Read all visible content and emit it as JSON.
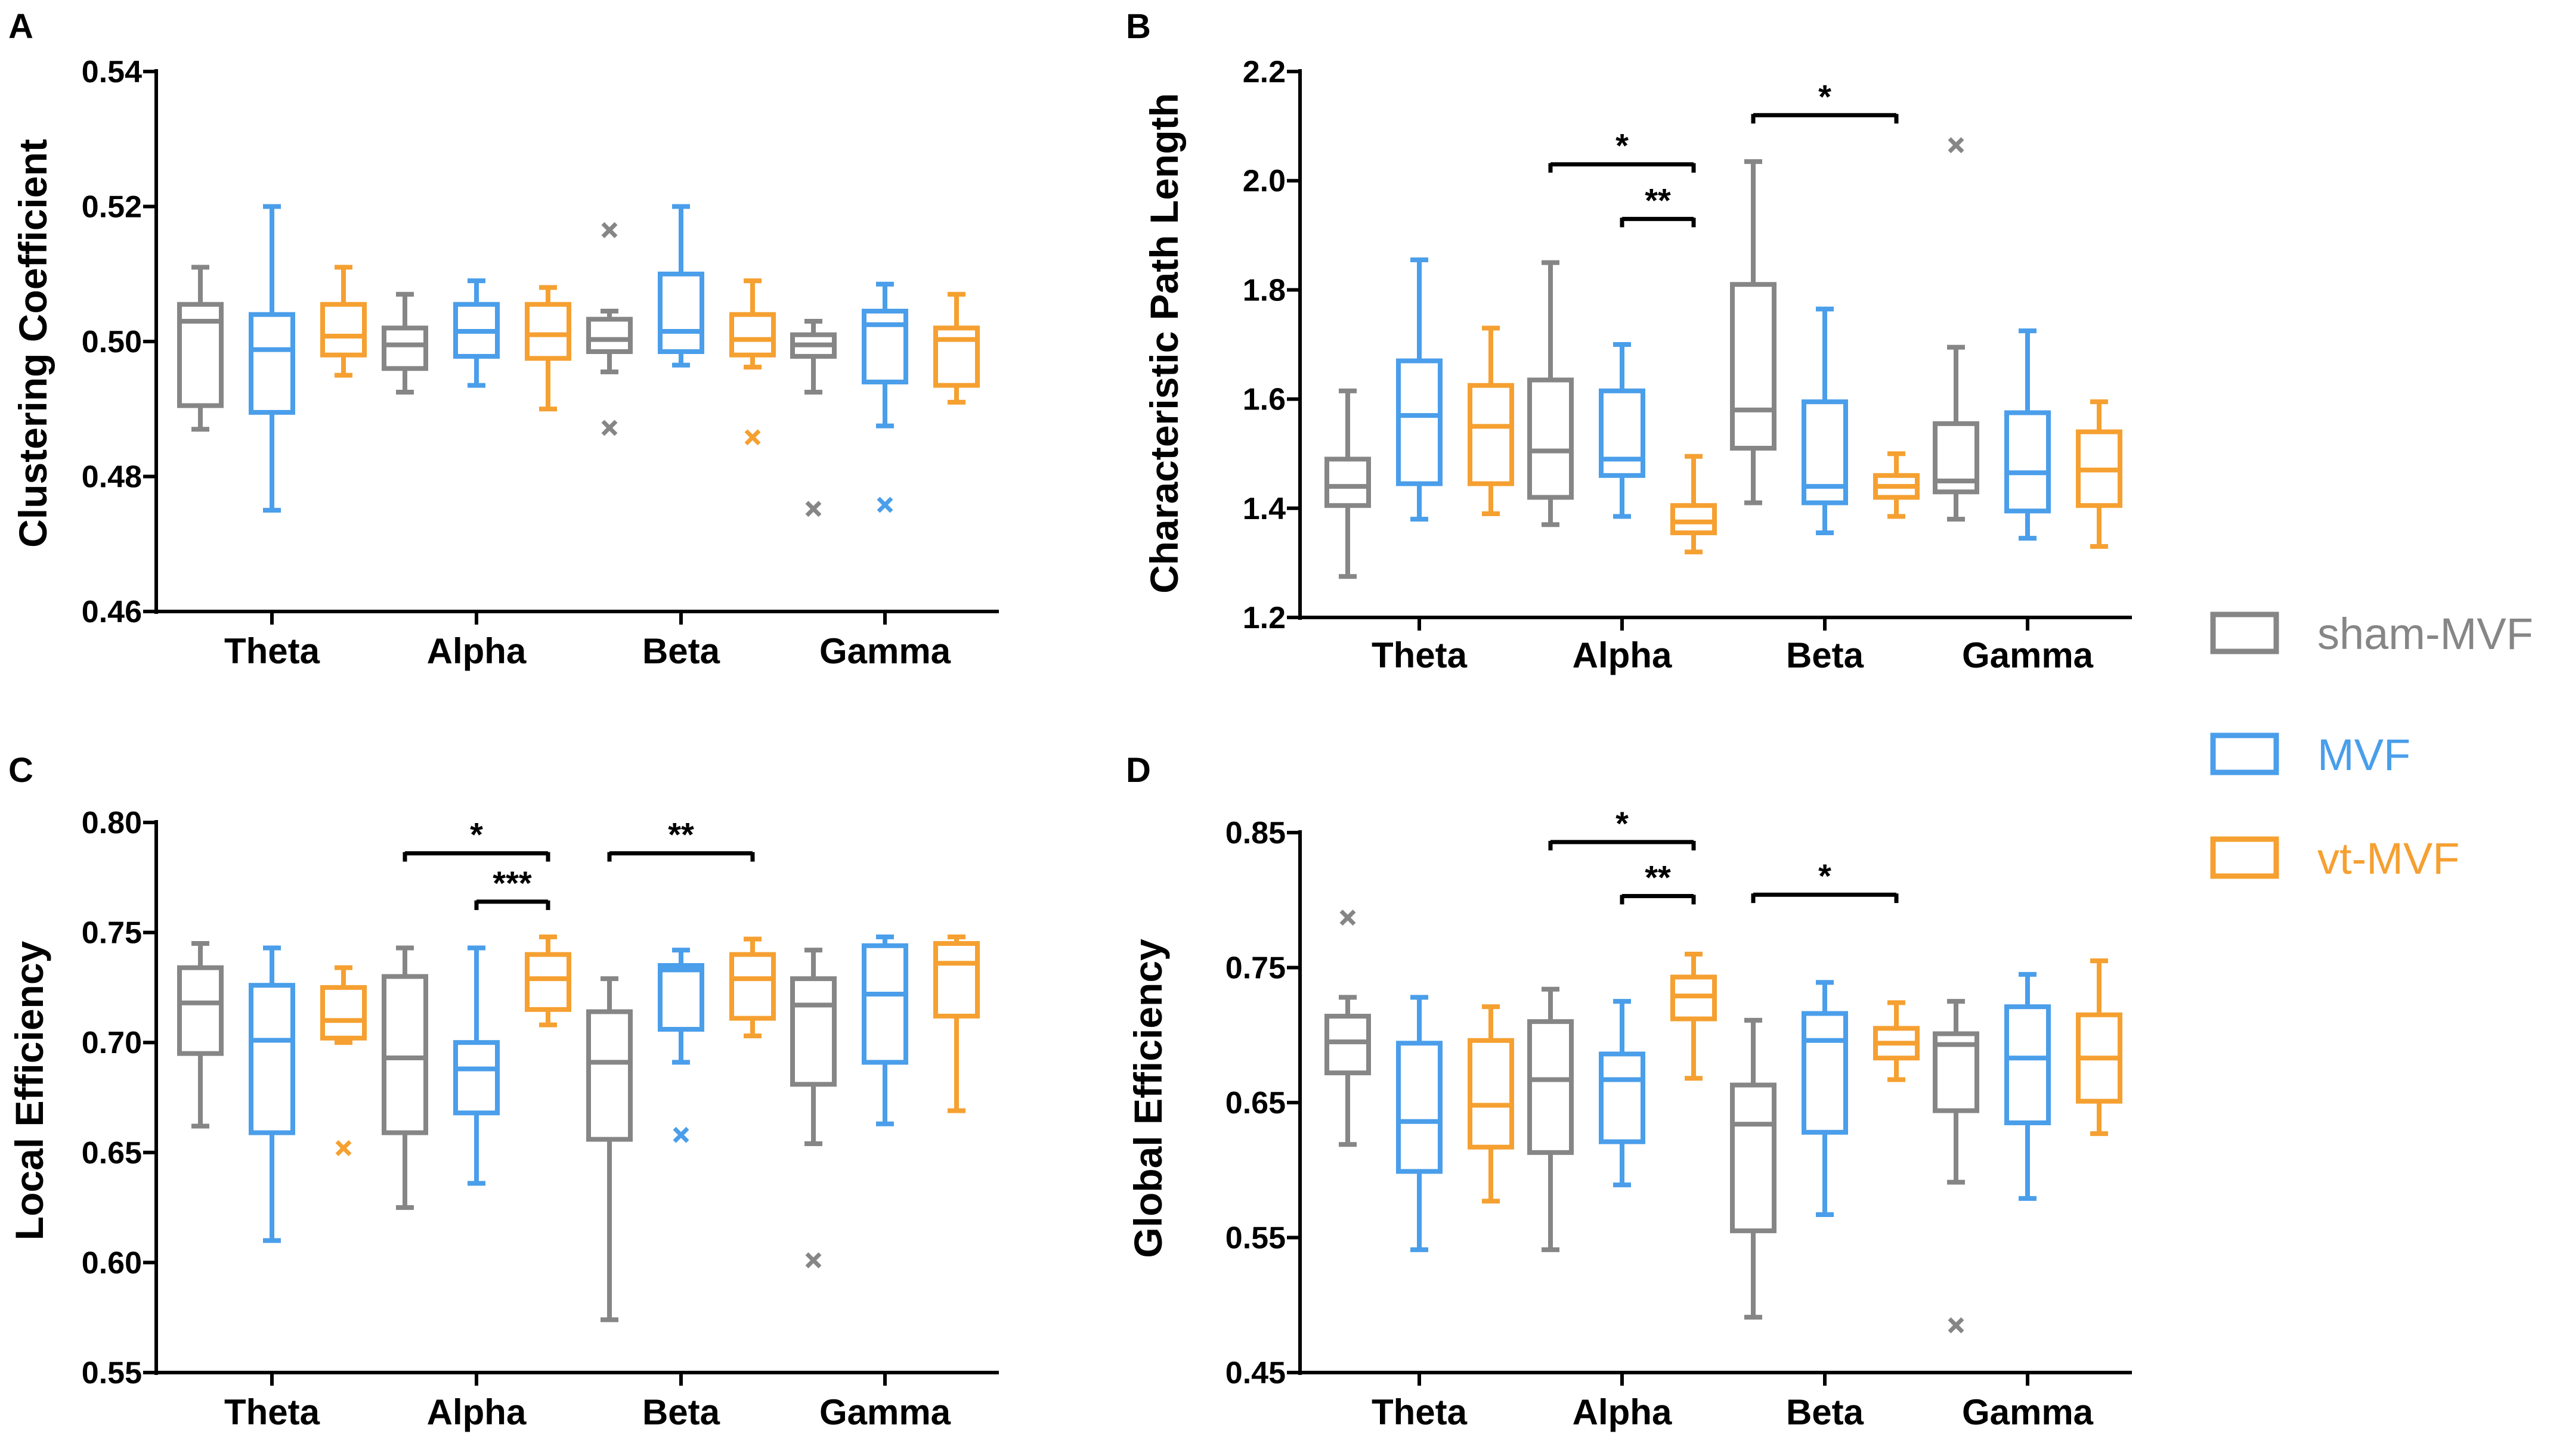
{
  "colors": {
    "sham-MVF": "#868686",
    "MVF": "#4a9eea",
    "vt-MVF": "#f5a031"
  },
  "legend": [
    {
      "name": "sham-MVF",
      "label": "sham-MVF"
    },
    {
      "name": "MVF",
      "label": "MVF"
    },
    {
      "name": "vt-MVF",
      "label": "vt-MVF"
    }
  ],
  "chart_data": [
    {
      "panel": "A",
      "type": "box",
      "ylabel": "Clustering Coefficient",
      "ylim": [
        0.46,
        0.54
      ],
      "ticks": [
        0.46,
        0.48,
        0.5,
        0.52,
        0.54
      ],
      "tick_labels": [
        "0.46",
        "0.48",
        "0.50",
        "0.52",
        "0.54"
      ],
      "categories": [
        "Theta",
        "Alpha",
        "Beta",
        "Gamma"
      ],
      "series": [
        {
          "name": "sham-MVF",
          "boxes": [
            {
              "min": 0.487,
              "q1": 0.4905,
              "median": 0.503,
              "q3": 0.5055,
              "max": 0.511,
              "outliers": []
            },
            {
              "min": 0.4925,
              "q1": 0.496,
              "median": 0.4995,
              "q3": 0.502,
              "max": 0.507,
              "outliers": []
            },
            {
              "min": 0.4955,
              "q1": 0.4985,
              "median": 0.5003,
              "q3": 0.5033,
              "max": 0.5045,
              "outliers": [
                0.5165,
                0.4872
              ]
            },
            {
              "min": 0.4925,
              "q1": 0.4978,
              "median": 0.4995,
              "q3": 0.501,
              "max": 0.503,
              "outliers": [
                0.4752
              ]
            }
          ]
        },
        {
          "name": "MVF",
          "boxes": [
            {
              "min": 0.475,
              "q1": 0.4895,
              "median": 0.4988,
              "q3": 0.504,
              "max": 0.52,
              "outliers": []
            },
            {
              "min": 0.4935,
              "q1": 0.4978,
              "median": 0.5015,
              "q3": 0.5055,
              "max": 0.509,
              "outliers": []
            },
            {
              "min": 0.4965,
              "q1": 0.4985,
              "median": 0.5015,
              "q3": 0.51,
              "max": 0.52,
              "outliers": []
            },
            {
              "min": 0.4875,
              "q1": 0.494,
              "median": 0.5025,
              "q3": 0.5045,
              "max": 0.5085,
              "outliers": [
                0.4758
              ]
            }
          ]
        },
        {
          "name": "vt-MVF",
          "boxes": [
            {
              "min": 0.495,
              "q1": 0.498,
              "median": 0.5008,
              "q3": 0.5055,
              "max": 0.511,
              "outliers": []
            },
            {
              "min": 0.49,
              "q1": 0.4975,
              "median": 0.501,
              "q3": 0.5055,
              "max": 0.508,
              "outliers": []
            },
            {
              "min": 0.4962,
              "q1": 0.498,
              "median": 0.5003,
              "q3": 0.504,
              "max": 0.509,
              "outliers": [
                0.4858
              ]
            },
            {
              "min": 0.491,
              "q1": 0.4935,
              "median": 0.5003,
              "q3": 0.502,
              "max": 0.507,
              "outliers": []
            }
          ]
        }
      ],
      "significance": []
    },
    {
      "panel": "B",
      "type": "box",
      "ylabel": "Characteristic Path Length",
      "ylim": [
        1.2,
        2.2
      ],
      "ticks": [
        1.2,
        1.4,
        1.6,
        1.8,
        2.0,
        2.2
      ],
      "tick_labels": [
        "1.2",
        "1.4",
        "1.6",
        "1.8",
        "2.0",
        "2.2"
      ],
      "categories": [
        "Theta",
        "Alpha",
        "Beta",
        "Gamma"
      ],
      "series": [
        {
          "name": "sham-MVF",
          "boxes": [
            {
              "min": 1.275,
              "q1": 1.405,
              "median": 1.44,
              "q3": 1.49,
              "max": 1.615,
              "outliers": []
            },
            {
              "min": 1.37,
              "q1": 1.42,
              "median": 1.505,
              "q3": 1.635,
              "max": 1.85,
              "outliers": []
            },
            {
              "min": 1.41,
              "q1": 1.51,
              "median": 1.58,
              "q3": 1.81,
              "max": 2.035,
              "outliers": []
            },
            {
              "min": 1.38,
              "q1": 1.43,
              "median": 1.45,
              "q3": 1.555,
              "max": 1.695,
              "outliers": [
                2.065
              ]
            }
          ]
        },
        {
          "name": "MVF",
          "boxes": [
            {
              "min": 1.38,
              "q1": 1.445,
              "median": 1.57,
              "q3": 1.67,
              "max": 1.855,
              "outliers": []
            },
            {
              "min": 1.385,
              "q1": 1.46,
              "median": 1.49,
              "q3": 1.615,
              "max": 1.7,
              "outliers": []
            },
            {
              "min": 1.355,
              "q1": 1.41,
              "median": 1.44,
              "q3": 1.595,
              "max": 1.765,
              "outliers": []
            },
            {
              "min": 1.345,
              "q1": 1.395,
              "median": 1.465,
              "q3": 1.575,
              "max": 1.725,
              "outliers": []
            }
          ]
        },
        {
          "name": "vt-MVF",
          "boxes": [
            {
              "min": 1.39,
              "q1": 1.445,
              "median": 1.55,
              "q3": 1.625,
              "max": 1.73,
              "outliers": []
            },
            {
              "min": 1.32,
              "q1": 1.355,
              "median": 1.375,
              "q3": 1.405,
              "max": 1.495,
              "outliers": []
            },
            {
              "min": 1.385,
              "q1": 1.42,
              "median": 1.44,
              "q3": 1.46,
              "max": 1.5,
              "outliers": []
            },
            {
              "min": 1.33,
              "q1": 1.405,
              "median": 1.47,
              "q3": 1.54,
              "max": 1.595,
              "outliers": []
            }
          ]
        }
      ],
      "significance": [
        {
          "category": 1,
          "from": "sham-MVF",
          "to": "vt-MVF",
          "level": 2.03,
          "label": "*"
        },
        {
          "category": 1,
          "from": "MVF",
          "to": "vt-MVF",
          "level": 1.93,
          "label": "**"
        },
        {
          "category": 2,
          "from": "sham-MVF",
          "to": "vt-MVF",
          "level": 2.12,
          "label": "*"
        }
      ]
    },
    {
      "panel": "C",
      "type": "box",
      "ylabel": "Local Efficiency",
      "ylim": [
        0.55,
        0.8
      ],
      "ticks": [
        0.55,
        0.6,
        0.65,
        0.7,
        0.75,
        0.8
      ],
      "tick_labels": [
        "0.55",
        "0.60",
        "0.65",
        "0.70",
        "0.75",
        "0.80"
      ],
      "categories": [
        "Theta",
        "Alpha",
        "Beta",
        "Gamma"
      ],
      "series": [
        {
          "name": "sham-MVF",
          "boxes": [
            {
              "min": 0.662,
              "q1": 0.695,
              "median": 0.718,
              "q3": 0.734,
              "max": 0.745,
              "outliers": []
            },
            {
              "min": 0.625,
              "q1": 0.659,
              "median": 0.693,
              "q3": 0.73,
              "max": 0.743,
              "outliers": []
            },
            {
              "min": 0.574,
              "q1": 0.656,
              "median": 0.691,
              "q3": 0.714,
              "max": 0.729,
              "outliers": []
            },
            {
              "min": 0.654,
              "q1": 0.681,
              "median": 0.717,
              "q3": 0.729,
              "max": 0.742,
              "outliers": [
                0.601
              ]
            }
          ]
        },
        {
          "name": "MVF",
          "boxes": [
            {
              "min": 0.61,
              "q1": 0.659,
              "median": 0.701,
              "q3": 0.726,
              "max": 0.743,
              "outliers": []
            },
            {
              "min": 0.636,
              "q1": 0.668,
              "median": 0.688,
              "q3": 0.7,
              "max": 0.743,
              "outliers": []
            },
            {
              "min": 0.691,
              "q1": 0.706,
              "median": 0.733,
              "q3": 0.735,
              "max": 0.742,
              "outliers": [
                0.658
              ]
            },
            {
              "min": 0.663,
              "q1": 0.691,
              "median": 0.722,
              "q3": 0.744,
              "max": 0.748,
              "outliers": []
            }
          ]
        },
        {
          "name": "vt-MVF",
          "boxes": [
            {
              "min": 0.7,
              "q1": 0.702,
              "median": 0.71,
              "q3": 0.725,
              "max": 0.734,
              "outliers": [
                0.652
              ]
            },
            {
              "min": 0.708,
              "q1": 0.715,
              "median": 0.729,
              "q3": 0.74,
              "max": 0.748,
              "outliers": []
            },
            {
              "min": 0.703,
              "q1": 0.711,
              "median": 0.729,
              "q3": 0.74,
              "max": 0.747,
              "outliers": []
            },
            {
              "min": 0.669,
              "q1": 0.712,
              "median": 0.736,
              "q3": 0.745,
              "max": 0.748,
              "outliers": []
            }
          ]
        }
      ],
      "significance": [
        {
          "category": 1,
          "from": "sham-MVF",
          "to": "vt-MVF",
          "level": 0.786,
          "label": "*"
        },
        {
          "category": 1,
          "from": "MVF",
          "to": "vt-MVF",
          "level": 0.764,
          "label": "***"
        },
        {
          "category": 2,
          "from": "sham-MVF",
          "to": "vt-MVF",
          "level": 0.786,
          "label": "**"
        }
      ]
    },
    {
      "panel": "D",
      "type": "box",
      "ylabel": "Global Efficiency",
      "ylim": [
        0.45,
        0.85
      ],
      "ticks": [
        0.45,
        0.55,
        0.65,
        0.75,
        0.85
      ],
      "tick_labels": [
        "0.45",
        "0.55",
        "0.65",
        "0.75",
        "0.85"
      ],
      "categories": [
        "Theta",
        "Alpha",
        "Beta",
        "Gamma"
      ],
      "series": [
        {
          "name": "sham-MVF",
          "boxes": [
            {
              "min": 0.619,
              "q1": 0.672,
              "median": 0.695,
              "q3": 0.714,
              "max": 0.728,
              "outliers": [
                0.787
              ]
            },
            {
              "min": 0.541,
              "q1": 0.613,
              "median": 0.667,
              "q3": 0.71,
              "max": 0.734,
              "outliers": []
            },
            {
              "min": 0.491,
              "q1": 0.555,
              "median": 0.634,
              "q3": 0.663,
              "max": 0.711,
              "outliers": []
            },
            {
              "min": 0.591,
              "q1": 0.644,
              "median": 0.693,
              "q3": 0.701,
              "max": 0.725,
              "outliers": [
                0.485
              ]
            }
          ]
        },
        {
          "name": "MVF",
          "boxes": [
            {
              "min": 0.541,
              "q1": 0.599,
              "median": 0.636,
              "q3": 0.694,
              "max": 0.728,
              "outliers": []
            },
            {
              "min": 0.589,
              "q1": 0.621,
              "median": 0.667,
              "q3": 0.686,
              "max": 0.725,
              "outliers": []
            },
            {
              "min": 0.567,
              "q1": 0.628,
              "median": 0.696,
              "q3": 0.716,
              "max": 0.739,
              "outliers": []
            },
            {
              "min": 0.579,
              "q1": 0.635,
              "median": 0.683,
              "q3": 0.721,
              "max": 0.745,
              "outliers": []
            }
          ]
        },
        {
          "name": "vt-MVF",
          "boxes": [
            {
              "min": 0.577,
              "q1": 0.617,
              "median": 0.648,
              "q3": 0.696,
              "max": 0.721,
              "outliers": []
            },
            {
              "min": 0.668,
              "q1": 0.712,
              "median": 0.729,
              "q3": 0.743,
              "max": 0.76,
              "outliers": []
            },
            {
              "min": 0.667,
              "q1": 0.683,
              "median": 0.694,
              "q3": 0.705,
              "max": 0.724,
              "outliers": []
            },
            {
              "min": 0.627,
              "q1": 0.651,
              "median": 0.683,
              "q3": 0.715,
              "max": 0.755,
              "outliers": []
            }
          ]
        }
      ],
      "significance": [
        {
          "category": 1,
          "from": "sham-MVF",
          "to": "vt-MVF",
          "level": 0.843,
          "label": "*"
        },
        {
          "category": 1,
          "from": "MVF",
          "to": "vt-MVF",
          "level": 0.803,
          "label": "**"
        },
        {
          "category": 2,
          "from": "sham-MVF",
          "to": "vt-MVF",
          "level": 0.804,
          "label": "*"
        }
      ]
    }
  ]
}
